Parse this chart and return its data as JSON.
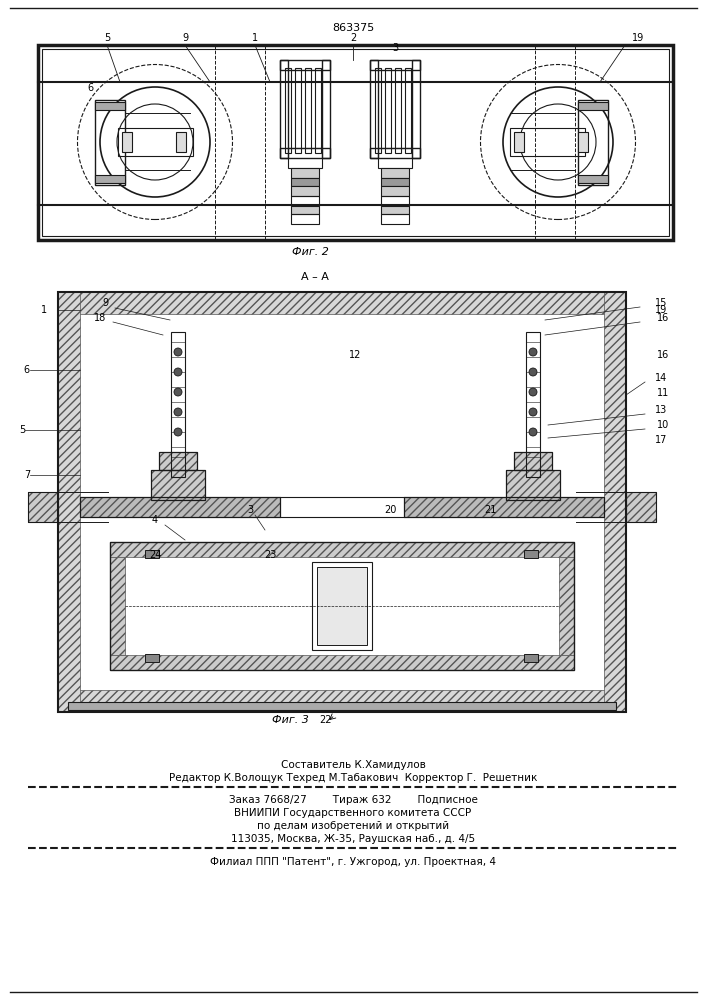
{
  "patent_number": "863375",
  "fig2_caption": "Фиг. 2",
  "fig3_caption": "Фиг. 3",
  "aa_label": "А – А",
  "footer_line1": "Составитель К.Хамидулов",
  "footer_line2": "Редактор К.Волощук Техред М.Табакович  Корректор Г.  Решетник",
  "footer_line3": "Заказ 7668/27        Тираж 632        Подписное",
  "footer_line4": "ВНИИПИ Государственного комитета СССР",
  "footer_line5": "по делам изобретений и открытий",
  "footer_line6": "113035, Москва, Ж-35, Раушская наб., д. 4/5",
  "footer_line7": "Филиал ППП \"Патент\", г. Ужгород, ул. Проектная, 4",
  "bg_color": "#f5f5f0",
  "line_color": "#1a1a1a",
  "hatch_color": "#333333"
}
